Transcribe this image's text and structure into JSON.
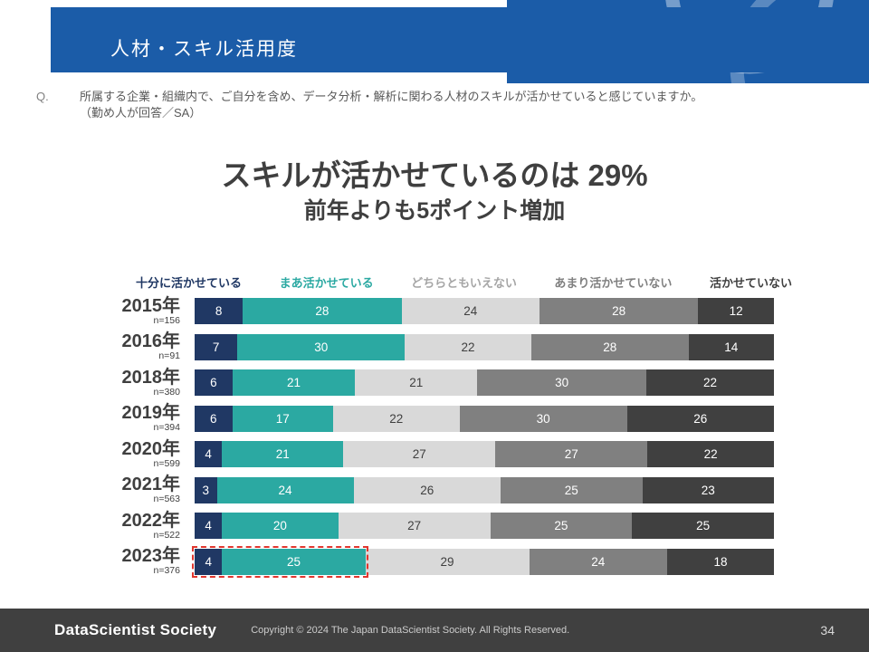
{
  "header": {
    "title": "人材・スキル活用度",
    "accent_color": "#1B5CA8"
  },
  "question": {
    "q_label": "Q.",
    "text": "所属する企業・組織内で、ご自分を含め、データ分析・解析に関わる人材のスキルが活かせていると感じていますか。",
    "sub": "（勤め人が回答／SA）"
  },
  "headline": {
    "line1": "スキルが活かせているのは 29%",
    "line2": "前年よりも5ポイント増加"
  },
  "chart_data": {
    "type": "bar",
    "stacked": true,
    "orientation": "horizontal",
    "xlim": [
      0,
      100
    ],
    "value_labels": true,
    "highlight_color": "#E1372F",
    "legend": [
      {
        "label": "十分に活かせている",
        "color": "#203864",
        "label_color": "#203864",
        "text_color": "#FFFFFF"
      },
      {
        "label": "まあ活かせている",
        "color": "#2BA9A2",
        "label_color": "#2BA9A2",
        "text_color": "#FFFFFF"
      },
      {
        "label": "どちらともいえない",
        "color": "#D9D9D9",
        "label_color": "#A6A6A6",
        "text_color": "#404040"
      },
      {
        "label": "あまり活かせていない",
        "color": "#808080",
        "label_color": "#808080",
        "text_color": "#FFFFFF"
      },
      {
        "label": "活かせていない",
        "color": "#404040",
        "label_color": "#404040",
        "text_color": "#FFFFFF"
      }
    ],
    "rows": [
      {
        "year": "2015年",
        "n": "n=156",
        "values": [
          8,
          28,
          24,
          28,
          12
        ]
      },
      {
        "year": "2016年",
        "n": "n=91",
        "values": [
          7,
          30,
          22,
          28,
          14
        ]
      },
      {
        "year": "2018年",
        "n": "n=380",
        "values": [
          6,
          21,
          21,
          30,
          22
        ]
      },
      {
        "year": "2019年",
        "n": "n=394",
        "values": [
          6,
          17,
          22,
          30,
          26
        ]
      },
      {
        "year": "2020年",
        "n": "n=599",
        "values": [
          4,
          21,
          27,
          27,
          22
        ]
      },
      {
        "year": "2021年",
        "n": "n=563",
        "values": [
          3,
          24,
          26,
          25,
          23
        ]
      },
      {
        "year": "2022年",
        "n": "n=522",
        "values": [
          4,
          20,
          27,
          25,
          25
        ]
      },
      {
        "year": "2023年",
        "n": "n=376",
        "values": [
          4,
          25,
          29,
          24,
          18
        ],
        "highlight_segments": [
          0,
          1
        ]
      }
    ]
  },
  "footer": {
    "logo": "DataScientist Society",
    "copyright": "Copyright © 2024  The Japan DataScientist Society. All Rights Reserved.",
    "page_number": "34"
  }
}
